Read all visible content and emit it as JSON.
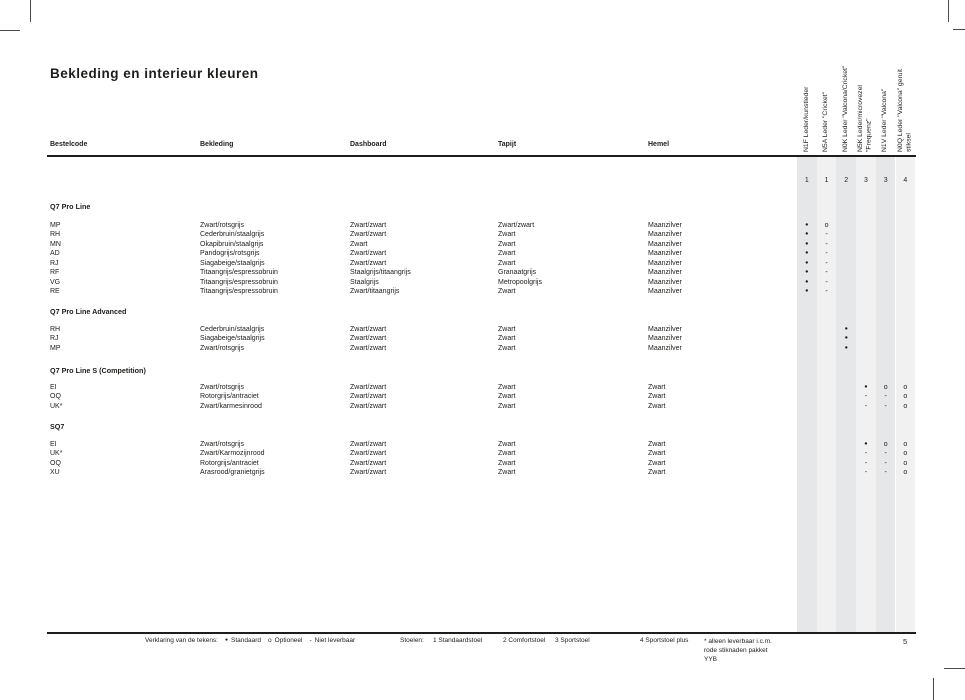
{
  "page": {
    "title": "Bekleding en interieur kleuren",
    "number": "5"
  },
  "colors": {
    "band_dark": "#e6e7e9",
    "band_light": "#f1f1f2",
    "text": "#1d1d1b"
  },
  "table": {
    "columns": [
      "Bestelcode",
      "Bekleding",
      "Dashboard",
      "Tapijt",
      "Hemel"
    ],
    "option_columns": [
      {
        "label": "N1F Leder/kunstleder",
        "seat": "1"
      },
      {
        "label": "N5A Leder \"Cricket\"",
        "seat": "1"
      },
      {
        "label": "N0K Leder \"Valcona/Cricket\"",
        "seat": "2"
      },
      {
        "label": "N5K Leder/microvezel\n\"Frequenz\"",
        "seat": "3"
      },
      {
        "label": "N1V Leder \"Valcona\"",
        "seat": "3"
      },
      {
        "label": "N0Q Leder \"Valcona\" geruit\nstiksel",
        "seat": "4"
      }
    ],
    "sections": [
      {
        "name": "Q7 Pro Line",
        "rows": [
          {
            "code": "MP",
            "bekleding": "Zwart/rotsgrijs",
            "dashboard": "Zwart/zwart",
            "tapijt": "Zwart/zwart",
            "hemel": "Maanzilver",
            "options": [
              "●",
              "o",
              "",
              "",
              "",
              ""
            ]
          },
          {
            "code": "RH",
            "bekleding": "Cederbruin/staalgrijs",
            "dashboard": "Zwart/zwart",
            "tapijt": "Zwart",
            "hemel": "Maanzilver",
            "options": [
              "●",
              "-",
              "",
              "",
              "",
              ""
            ]
          },
          {
            "code": "MN",
            "bekleding": "Okapibruin/staalgrijs",
            "dashboard": "Zwart",
            "tapijt": "Zwart",
            "hemel": "Maanzilver",
            "options": [
              "●",
              "-",
              "",
              "",
              "",
              ""
            ]
          },
          {
            "code": "AD",
            "bekleding": "Pandogrijs/rotsgrijs",
            "dashboard": "Zwart/zwart",
            "tapijt": "Zwart",
            "hemel": "Maanzilver",
            "options": [
              "●",
              "-",
              "",
              "",
              "",
              ""
            ]
          },
          {
            "code": "RJ",
            "bekleding": "Siagabeige/staalgrijs",
            "dashboard": "Zwart/zwart",
            "tapijt": "Zwart",
            "hemel": "Maanzilver",
            "options": [
              "●",
              "-",
              "",
              "",
              "",
              ""
            ]
          },
          {
            "code": "RF",
            "bekleding": "Titaangrijs/espressobruin",
            "dashboard": "Staalgrijs/titaangrijs",
            "tapijt": "Granaatgrijs",
            "hemel": "Maanzilver",
            "options": [
              "●",
              "-",
              "",
              "",
              "",
              ""
            ]
          },
          {
            "code": "VG",
            "bekleding": "Titaangrijs/espressobruin",
            "dashboard": "Staalgrijs",
            "tapijt": "Metropoolgrijs",
            "hemel": "Maanzilver",
            "options": [
              "●",
              "-",
              "",
              "",
              "",
              ""
            ]
          },
          {
            "code": "RE",
            "bekleding": "Titaangrijs/espressobruin",
            "dashboard": "Zwart/titaangrijs",
            "tapijt": "Zwart",
            "hemel": "Maanzilver",
            "options": [
              "●",
              "-",
              "",
              "",
              "",
              ""
            ]
          }
        ]
      },
      {
        "name": "Q7 Pro Line Advanced",
        "rows": [
          {
            "code": "RH",
            "bekleding": "Cederbruin/staalgrijs",
            "dashboard": "Zwart/zwart",
            "tapijt": "Zwart",
            "hemel": "Maanzilver",
            "options": [
              "",
              "",
              "●",
              "",
              "",
              ""
            ]
          },
          {
            "code": "RJ",
            "bekleding": "Siagabeige/staalgrijs",
            "dashboard": "Zwart/zwart",
            "tapijt": "Zwart",
            "hemel": "Maanzilver",
            "options": [
              "",
              "",
              "●",
              "",
              "",
              ""
            ]
          },
          {
            "code": "MP",
            "bekleding": "Zwart/rotsgrijs",
            "dashboard": "Zwart/zwart",
            "tapijt": "Zwart",
            "hemel": "Maanzilver",
            "options": [
              "",
              "",
              "●",
              "",
              "",
              ""
            ]
          }
        ]
      },
      {
        "name": "Q7 Pro Line S (Competition)",
        "rows": [
          {
            "code": "EI",
            "bekleding": "Zwart/rotsgrijs",
            "dashboard": "Zwart/zwart",
            "tapijt": "Zwart",
            "hemel": "Zwart",
            "options": [
              "",
              "",
              "",
              "●",
              "o",
              "o"
            ]
          },
          {
            "code": "OQ",
            "bekleding": "Rotorgrijs/antraciet",
            "dashboard": "Zwart/zwart",
            "tapijt": "Zwart",
            "hemel": "Zwart",
            "options": [
              "",
              "",
              "",
              "-",
              "-",
              "o"
            ]
          },
          {
            "code": "UK*",
            "bekleding": "Zwart/karmesinrood",
            "dashboard": "Zwart/zwart",
            "tapijt": "Zwart",
            "hemel": "Zwart",
            "options": [
              "",
              "",
              "",
              "-",
              "-",
              "o"
            ]
          }
        ]
      },
      {
        "name": "SQ7",
        "rows": [
          {
            "code": "EI",
            "bekleding": "Zwart/rotsgrijs",
            "dashboard": "Zwart/zwart",
            "tapijt": "Zwart",
            "hemel": "Zwart",
            "options": [
              "",
              "",
              "",
              "●",
              "o",
              "o"
            ]
          },
          {
            "code": "UK*",
            "bekleding": "Zwart/Karmozijnrood",
            "dashboard": "Zwart/zwart",
            "tapijt": "Zwart",
            "hemel": "Zwart",
            "options": [
              "",
              "",
              "",
              "-",
              "-",
              "o"
            ]
          },
          {
            "code": "OQ",
            "bekleding": "Rotorgrijs/antraciet",
            "dashboard": "Zwart/zwart",
            "tapijt": "Zwart",
            "hemel": "Zwart",
            "options": [
              "",
              "",
              "",
              "-",
              "-",
              "o"
            ]
          },
          {
            "code": "XU",
            "bekleding": "Arasrood/granietgrijs",
            "dashboard": "Zwart/zwart",
            "tapijt": "Zwart",
            "hemel": "Zwart",
            "options": [
              "",
              "",
              "",
              "-",
              "-",
              "o"
            ]
          }
        ]
      }
    ]
  },
  "footer": {
    "legend_title": "Verklaring van de tekens:",
    "legend": [
      {
        "symbol": "●",
        "label": "Standaard"
      },
      {
        "symbol": "o",
        "label": "Optioneel"
      },
      {
        "symbol": "-",
        "label": "Niet leverbaar"
      }
    ],
    "stoelen_label": "Stoelen:",
    "seats": [
      "1 Standaardstoel",
      "2 Comfortstoel",
      "3 Sportstoel",
      "4 Sportstoel plus"
    ],
    "note_lines": [
      "* alleen leverbaar i.c.m.",
      "rode stiknaden pakket",
      "YYB"
    ]
  }
}
